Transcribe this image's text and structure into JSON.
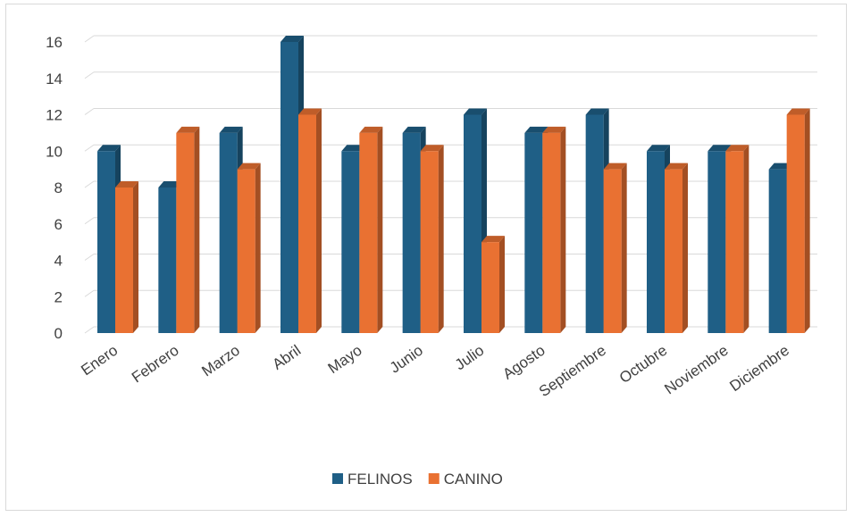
{
  "chart_data": {
    "type": "bar",
    "categories": [
      "Enero",
      "Febrero",
      "Marzo",
      "Abril",
      "Mayo",
      "Junio",
      "Julio",
      "Agosto",
      "Septiembre",
      "Octubre",
      "Noviembre",
      "Diciembre"
    ],
    "series": [
      {
        "name": "FELINOS",
        "values": [
          10,
          8,
          11,
          16,
          10,
          11,
          12,
          11,
          12,
          10,
          10,
          9
        ],
        "color": "#1f5f86"
      },
      {
        "name": "CANINO",
        "values": [
          8,
          11,
          9,
          12,
          11,
          10,
          5,
          11,
          9,
          9,
          10,
          12
        ],
        "color": "#e97132"
      }
    ],
    "y_ticks": [
      "0",
      "2",
      "4",
      "6",
      "8",
      "10",
      "12",
      "14",
      "16"
    ],
    "ylim": [
      0,
      16
    ],
    "grid": true,
    "legend": "bottom",
    "style": "3d-clustered-column"
  }
}
